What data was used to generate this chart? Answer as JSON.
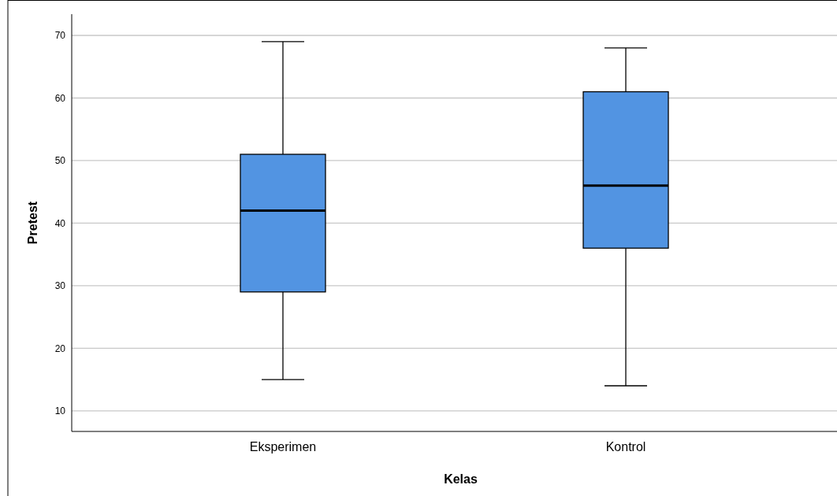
{
  "chart_data": {
    "type": "box",
    "xlabel": "Kelas",
    "ylabel": "Pretest",
    "categories": [
      "Eksperimen",
      "Kontrol"
    ],
    "boxes": [
      {
        "low": 15,
        "q1": 29,
        "median": 42,
        "q3": 51,
        "high": 69
      },
      {
        "low": 14,
        "q1": 36,
        "median": 46,
        "q3": 61,
        "high": 68
      }
    ],
    "color": "#5294e2",
    "ylim": [
      6.7,
      73.4
    ],
    "yticks": [
      10,
      20,
      30,
      40,
      50,
      60,
      70
    ],
    "grid": "y"
  }
}
